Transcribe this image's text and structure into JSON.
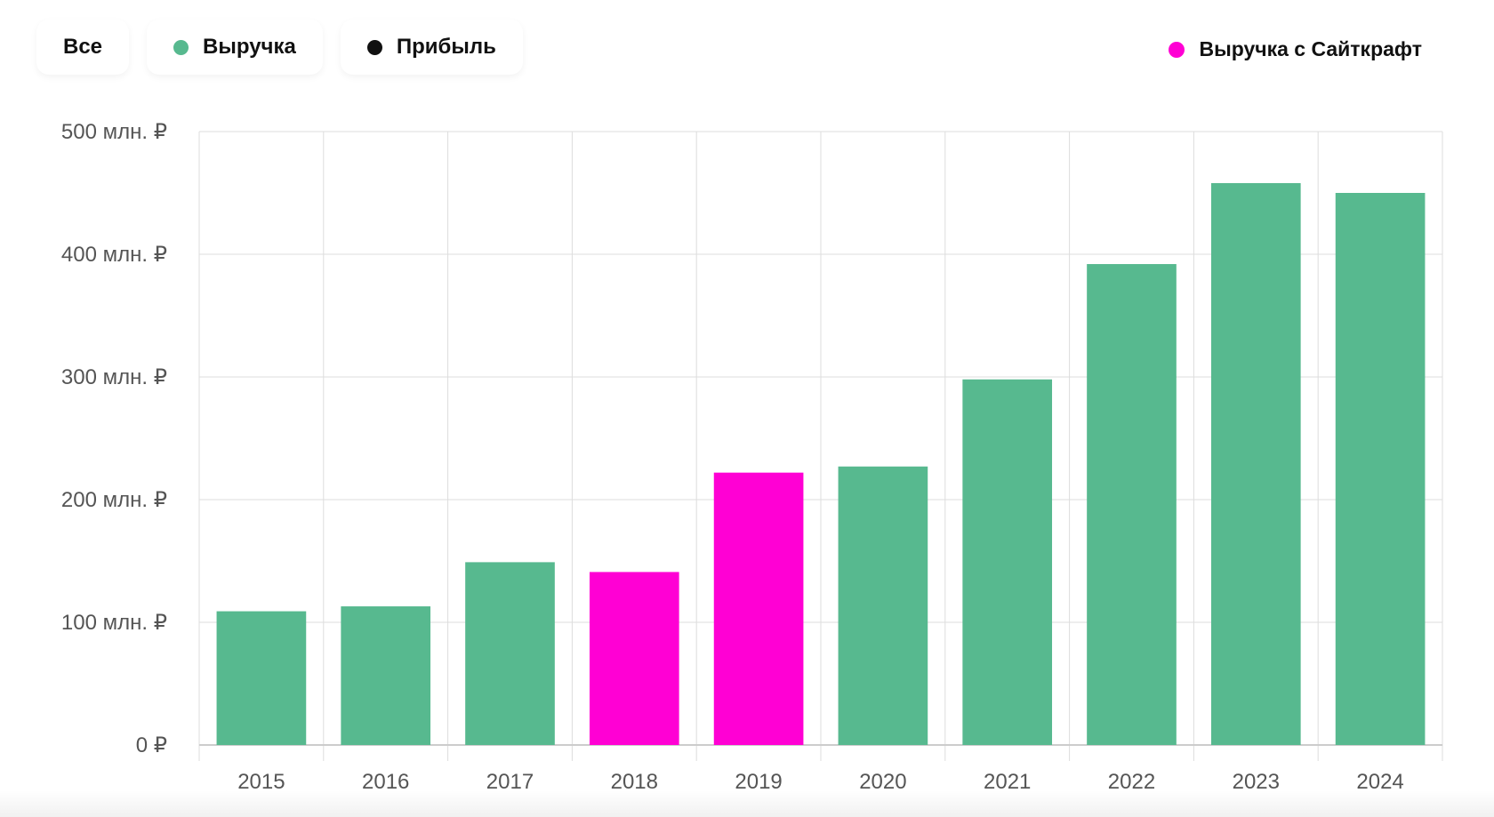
{
  "filters": [
    {
      "label": "Все",
      "dot": null
    },
    {
      "label": "Выручка",
      "dot": "#57b98f"
    },
    {
      "label": "Прибыль",
      "dot": "#111111"
    }
  ],
  "legend": {
    "label": "Выручка с Сайткрафт",
    "color": "#ff00d4"
  },
  "colors": {
    "default": "#57b98f",
    "highlight": "#ff00d4",
    "grid": "#dddddd",
    "axis": "#cccccc"
  },
  "chart_data": {
    "type": "bar",
    "categories": [
      "2015",
      "2016",
      "2017",
      "2018",
      "2019",
      "2020",
      "2021",
      "2022",
      "2023",
      "2024"
    ],
    "series": [
      {
        "name": "Выручка",
        "values": [
          109,
          113,
          149,
          141,
          222,
          227,
          298,
          392,
          458,
          450
        ]
      }
    ],
    "highlighted": [
      "2018",
      "2019"
    ],
    "ylim": [
      0,
      500
    ],
    "yticks": [
      0,
      100,
      200,
      300,
      400,
      500
    ],
    "ytick_labels": [
      "0 ₽",
      "100 млн. ₽",
      "200 млн. ₽",
      "300 млн. ₽",
      "400 млн. ₽",
      "500 млн. ₽"
    ],
    "grid": true
  }
}
